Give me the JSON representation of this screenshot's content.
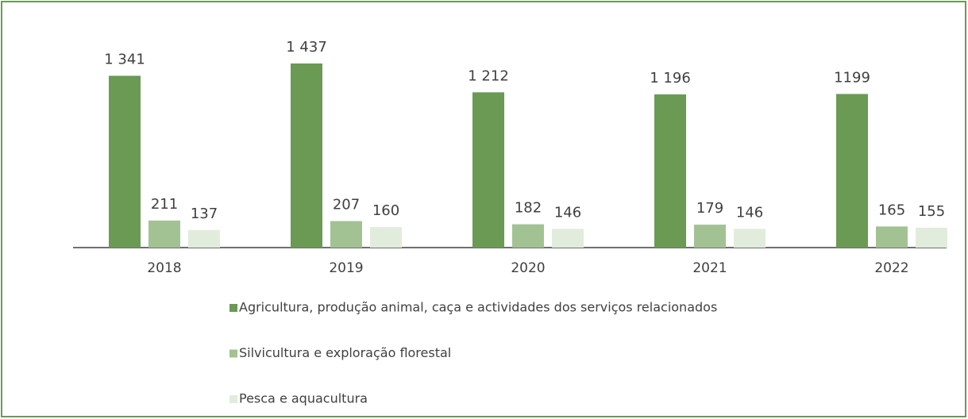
{
  "chart_data": {
    "type": "bar",
    "categories": [
      "2018",
      "2019",
      "2020",
      "2021",
      "2022"
    ],
    "series": [
      {
        "name": "Agricultura, produção animal, caça e actividades dos serviços relacionados",
        "color": "#6a9a54",
        "values": [
          1341,
          1437,
          1212,
          1196,
          1199
        ],
        "value_labels": [
          "1 341",
          "1 437",
          "1 212",
          "1 196",
          "1199"
        ]
      },
      {
        "name": "Silvicultura e exploração florestal",
        "color": "#a3c293",
        "values": [
          211,
          207,
          182,
          179,
          165
        ]
      },
      {
        "name": "Pesca e aquacultura",
        "color": "#e2ecdc",
        "values": [
          137,
          160,
          146,
          146,
          155
        ]
      }
    ],
    "legend": "bottom"
  }
}
